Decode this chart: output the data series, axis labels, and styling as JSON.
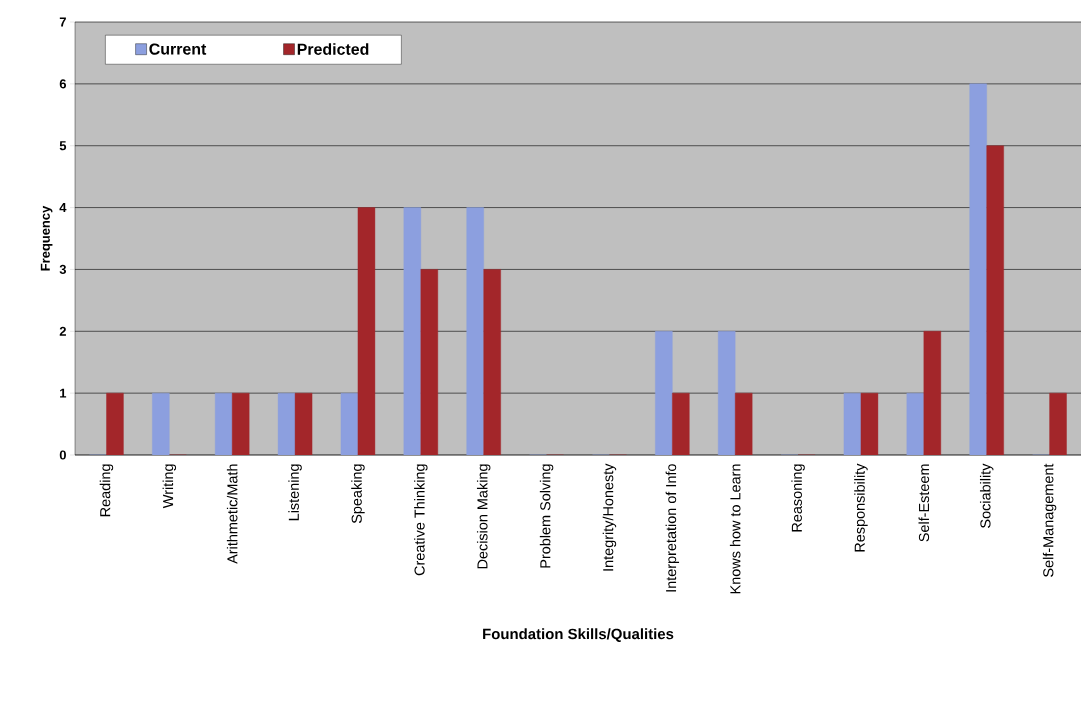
{
  "chart_data": {
    "type": "bar",
    "xlabel": "Foundation Skills/Qualities",
    "ylabel": "Frequency",
    "categories": [
      "Reading",
      "Writing",
      "Arithmetic/Math",
      "Listening",
      "Speaking",
      "Creative Thinking",
      "Decision Making",
      "Problem Solving",
      "Integrity/Honesty",
      "Interpretation of Info",
      "Knows how to Learn",
      "Reasoning",
      "Responsibility",
      "Self-Esteem",
      "Sociability",
      "Self-Management"
    ],
    "series": [
      {
        "name": "Current",
        "color": "#8c9fdf",
        "values": [
          0,
          1,
          1,
          1,
          1,
          4,
          4,
          0,
          0,
          2,
          2,
          0,
          1,
          1,
          6,
          0
        ]
      },
      {
        "name": "Predicted",
        "color": "#a3262a",
        "values": [
          1,
          0,
          1,
          1,
          4,
          3,
          3,
          0,
          0,
          1,
          1,
          0,
          1,
          2,
          5,
          1
        ]
      }
    ],
    "ylim": [
      0,
      7
    ],
    "yticks": [
      0,
      1,
      2,
      3,
      4,
      5,
      6,
      7
    ],
    "grid": "y",
    "legend": "top left"
  }
}
